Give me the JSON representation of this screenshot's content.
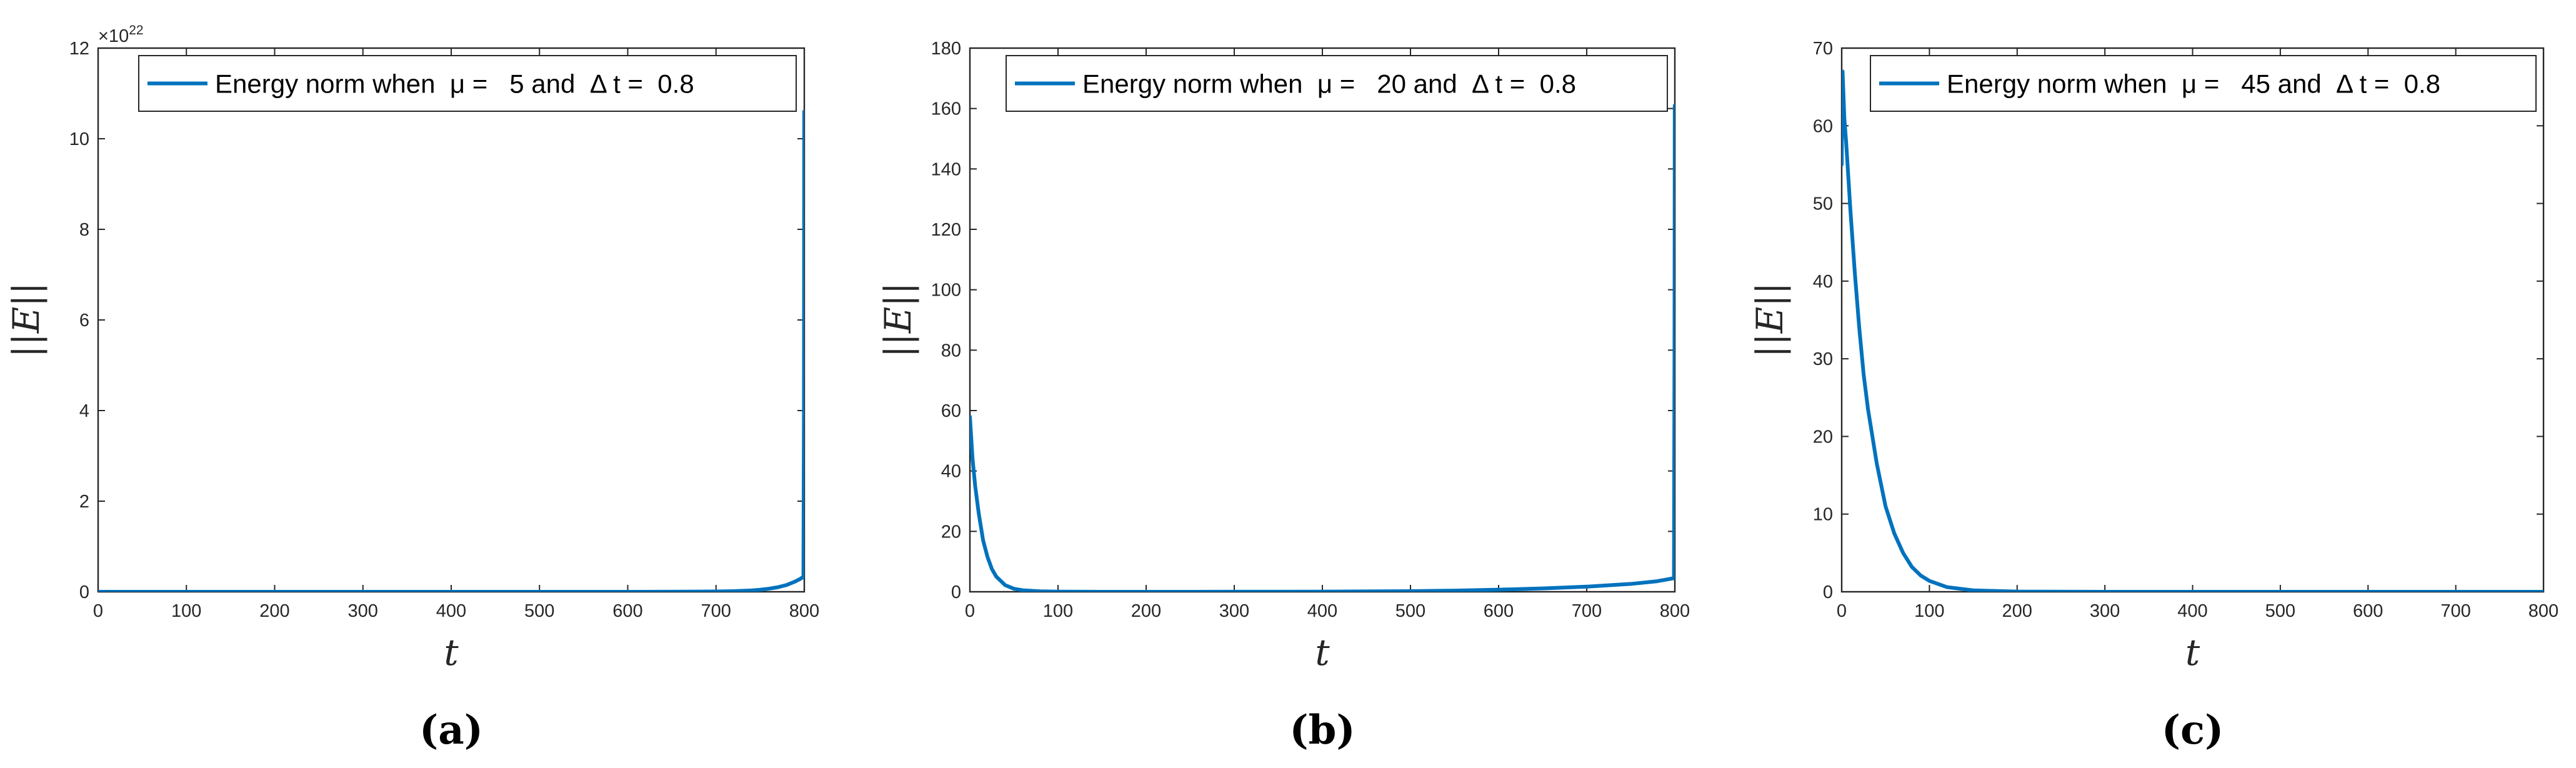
{
  "chart_data": [
    {
      "type": "line",
      "xlabel": "t",
      "ylabel": "||E||",
      "xlim": [
        0,
        800
      ],
      "ylim": [
        0,
        12
      ],
      "x_ticks": [
        "0",
        "100",
        "200",
        "300",
        "400",
        "500",
        "600",
        "700",
        "800"
      ],
      "y_ticks": [
        "0",
        "2",
        "4",
        "6",
        "8",
        "10",
        "12"
      ],
      "y_exponent": "22",
      "y_exponent_base": "×10",
      "legend_position": "top-right",
      "caption": "(a)",
      "series": [
        {
          "name": "Energy norm when  μ =   5 and  Δ t =  0.8",
          "color": "#0072BD",
          "x": [
            0,
            500,
            600,
            650,
            700,
            720,
            740,
            750,
            760,
            770,
            780,
            790,
            795,
            799,
            799.6,
            799.9,
            800
          ],
          "y": [
            0,
            1e-05,
            0.0003,
            0.0012,
            0.0065,
            0.014,
            0.03,
            0.045,
            0.068,
            0.1,
            0.15,
            0.23,
            0.28,
            0.33,
            4.0,
            10.6,
            8.0
          ]
        }
      ]
    },
    {
      "type": "line",
      "xlabel": "t",
      "ylabel": "||E||",
      "xlim": [
        0,
        800
      ],
      "ylim": [
        0,
        180
      ],
      "x_ticks": [
        "0",
        "100",
        "200",
        "300",
        "400",
        "500",
        "600",
        "700",
        "800"
      ],
      "y_ticks": [
        "0",
        "20",
        "40",
        "60",
        "80",
        "100",
        "120",
        "140",
        "160",
        "180"
      ],
      "legend_position": "top-right",
      "caption": "(b)",
      "series": [
        {
          "name": "Energy norm when  μ =   20 and  Δ t =  0.8",
          "color": "#0072BD",
          "x": [
            0,
            3,
            6,
            10,
            15,
            20,
            25,
            30,
            40,
            50,
            60,
            80,
            100,
            150,
            200,
            250,
            300,
            350,
            400,
            450,
            500,
            550,
            600,
            650,
            700,
            750,
            780,
            799,
            799.6,
            799.9,
            800
          ],
          "y": [
            58,
            44,
            35,
            26,
            17,
            11.5,
            7.5,
            5,
            2.2,
            1,
            0.5,
            0.15,
            0.05,
            0.01,
            0.005,
            0.006,
            0.015,
            0.03,
            0.06,
            0.12,
            0.22,
            0.4,
            0.7,
            1.1,
            1.7,
            2.6,
            3.5,
            4.5,
            80,
            161,
            120
          ]
        }
      ]
    },
    {
      "type": "line",
      "xlabel": "t",
      "ylabel": "||E||",
      "xlim": [
        0,
        800
      ],
      "ylim": [
        0,
        70
      ],
      "x_ticks": [
        "0",
        "100",
        "200",
        "300",
        "400",
        "500",
        "600",
        "700",
        "800"
      ],
      "y_ticks": [
        "0",
        "10",
        "20",
        "30",
        "40",
        "50",
        "60",
        "70"
      ],
      "legend_position": "top-right",
      "caption": "(c)",
      "series": [
        {
          "name": "Energy norm when  μ =   45 and  Δ t =  0.8",
          "color": "#0072BD",
          "x": [
            0,
            1,
            3,
            5,
            10,
            15,
            20,
            25,
            30,
            40,
            50,
            60,
            70,
            80,
            90,
            100,
            120,
            150,
            200,
            300,
            400,
            500,
            600,
            700,
            800
          ],
          "y": [
            55,
            67,
            61,
            58,
            49,
            41,
            34,
            28,
            23.5,
            16.5,
            11,
            7.5,
            5,
            3.2,
            2.1,
            1.4,
            0.6,
            0.18,
            0.03,
            0,
            0,
            0,
            0,
            0,
            0
          ]
        }
      ]
    }
  ]
}
